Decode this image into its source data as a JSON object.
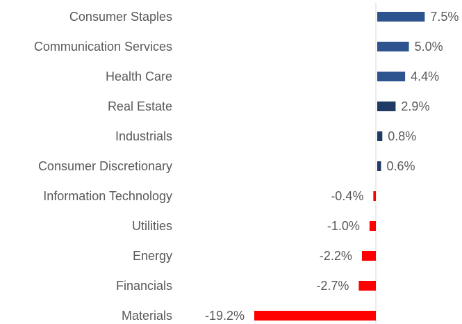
{
  "chart_data": {
    "type": "bar",
    "orientation": "horizontal",
    "categories": [
      "Consumer Staples",
      "Communication Services",
      "Health Care",
      "Real Estate",
      "Industrials",
      "Consumer Discretionary",
      "Information Technology",
      "Utilities",
      "Energy",
      "Financials",
      "Materials"
    ],
    "values": [
      7.5,
      5.0,
      4.4,
      2.9,
      0.8,
      0.6,
      -0.4,
      -1.0,
      -2.2,
      -2.7,
      -19.2
    ],
    "value_labels": [
      "7.5%",
      "5.0%",
      "4.4%",
      "2.9%",
      "0.8%",
      "0.6%",
      "-0.4%",
      "-1.0%",
      "-2.2%",
      "-2.7%",
      "-19.2%"
    ],
    "colors": [
      "#2e5490",
      "#2e5490",
      "#2e5490",
      "#1f3a64",
      "#1f3a64",
      "#1f3a64",
      "#ff0000",
      "#ff0000",
      "#ff0000",
      "#ff0000",
      "#ff0000"
    ]
  }
}
